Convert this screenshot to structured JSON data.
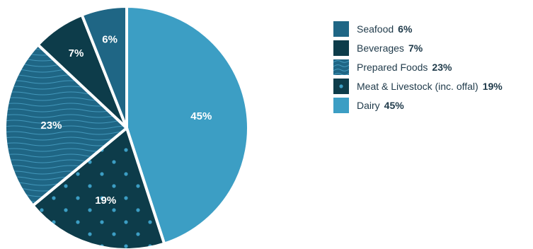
{
  "chart_data": {
    "type": "pie",
    "title": "",
    "slices": [
      {
        "label": "Dairy",
        "value": 45,
        "value_label": "45%",
        "color": "#3c9ec4",
        "pattern": "solid"
      },
      {
        "label": "Meat & Livestock (inc. offal)",
        "value": 19,
        "value_label": "19%",
        "color": "#0d3c4a",
        "pattern": "dots"
      },
      {
        "label": "Prepared Foods",
        "value": 23,
        "value_label": "23%",
        "color": "#1f6685",
        "pattern": "waves"
      },
      {
        "label": "Beverages",
        "value": 7,
        "value_label": "7%",
        "color": "#0d3c4a",
        "pattern": "solid"
      },
      {
        "label": "Seafood",
        "value": 6,
        "value_label": "6%",
        "color": "#1f6685",
        "pattern": "solid"
      }
    ],
    "legend_position": "right",
    "legend_order": [
      "Seafood",
      "Beverages",
      "Prepared Foods",
      "Meat & Livestock (inc. offal)",
      "Dairy"
    ],
    "colors": {
      "dots": "#3c9ec4",
      "waves": "#4aa3c7",
      "divider": "#ffffff"
    }
  }
}
